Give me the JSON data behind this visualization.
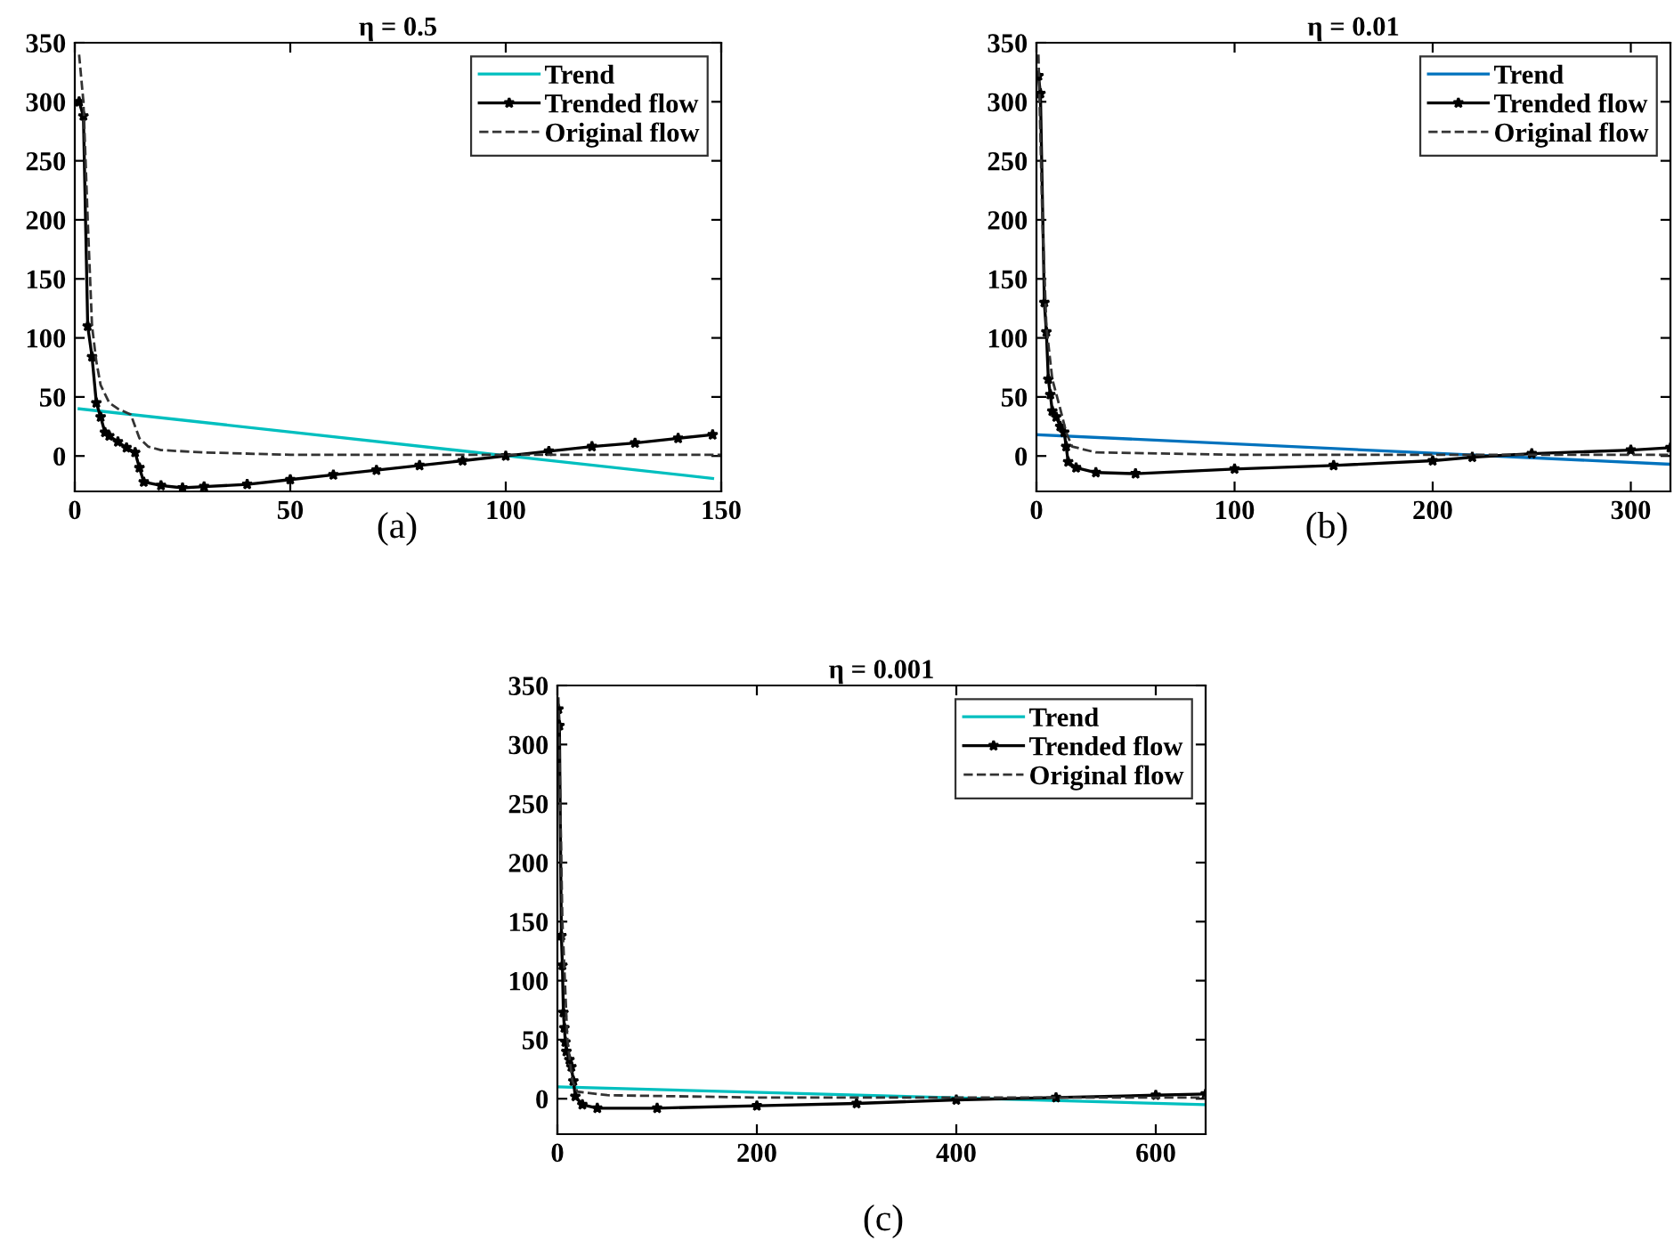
{
  "chart_data": [
    {
      "type": "line",
      "title": "η = 0.5",
      "xlim": [
        0,
        150
      ],
      "xticks": [
        0,
        50,
        100,
        150
      ],
      "ylim": [
        -30,
        350
      ],
      "yticks": [
        0,
        50,
        100,
        150,
        200,
        250,
        300,
        350
      ],
      "legend": "top right",
      "grid": false,
      "annotations": [
        "(a)"
      ],
      "series": [
        {
          "name": "Trend",
          "color": "#00bfbf",
          "line_style": "solid",
          "marker": "none",
          "x": [
            1,
            148
          ],
          "values": [
            40,
            -19
          ]
        },
        {
          "name": "Trended flow",
          "color": "#000000",
          "line_style": "solid",
          "marker": "star",
          "x": [
            1,
            2,
            3,
            4,
            5,
            6,
            7,
            8,
            10,
            12,
            14,
            15,
            16,
            20,
            25,
            30,
            40,
            50,
            60,
            70,
            80,
            90,
            100,
            110,
            120,
            130,
            140,
            148
          ],
          "values": [
            300,
            288,
            110,
            84,
            45,
            33,
            20,
            17,
            12,
            7,
            3,
            -10,
            -22,
            -25,
            -27,
            -26,
            -24,
            -20,
            -16,
            -12,
            -8,
            -4,
            0,
            4,
            8,
            11,
            15,
            18
          ]
        },
        {
          "name": "Original flow",
          "color": "#333333",
          "line_style": "dashed",
          "marker": "none",
          "x": [
            1,
            2,
            3,
            4,
            5,
            6,
            8,
            10,
            13,
            15,
            17,
            20,
            30,
            50,
            100,
            150
          ],
          "values": [
            340,
            300,
            200,
            110,
            80,
            60,
            45,
            40,
            35,
            15,
            8,
            5,
            3,
            1,
            1,
            1
          ]
        }
      ]
    },
    {
      "type": "line",
      "title": "η = 0.01",
      "xlim": [
        0,
        320
      ],
      "xticks": [
        0,
        100,
        200,
        300
      ],
      "ylim": [
        -30,
        350
      ],
      "yticks": [
        0,
        50,
        100,
        150,
        200,
        250,
        300,
        350
      ],
      "legend": "top right",
      "grid": false,
      "annotations": [
        "(b)"
      ],
      "series": [
        {
          "name": "Trend",
          "color": "#0072bd",
          "line_style": "solid",
          "marker": "none",
          "x": [
            1,
            320
          ],
          "values": [
            18,
            -7
          ]
        },
        {
          "name": "Trended flow",
          "color": "#000000",
          "line_style": "solid",
          "marker": "star",
          "x": [
            1,
            2,
            4,
            5,
            6,
            7,
            8,
            10,
            12,
            14,
            15,
            16,
            20,
            30,
            50,
            100,
            150,
            200,
            220,
            250,
            300,
            320
          ],
          "values": [
            322,
            307,
            130,
            105,
            65,
            52,
            38,
            33,
            25,
            20,
            8,
            -5,
            -10,
            -14,
            -15,
            -11,
            -8,
            -4,
            -1,
            2,
            5,
            7
          ]
        },
        {
          "name": "Original flow",
          "color": "#333333",
          "line_style": "dashed",
          "marker": "none",
          "x": [
            1,
            3,
            5,
            8,
            12,
            15,
            18,
            30,
            100,
            320
          ],
          "values": [
            340,
            200,
            110,
            65,
            40,
            20,
            8,
            3,
            1,
            1
          ]
        }
      ]
    },
    {
      "type": "line",
      "title": "η = 0.001",
      "xlim": [
        0,
        650
      ],
      "xticks": [
        0,
        200,
        400,
        600
      ],
      "ylim": [
        -30,
        350
      ],
      "yticks": [
        0,
        50,
        100,
        150,
        200,
        250,
        300,
        350
      ],
      "legend": "top right",
      "grid": false,
      "annotations": [
        "(c)"
      ],
      "series": [
        {
          "name": "Trend",
          "color": "#00bfbf",
          "line_style": "solid",
          "marker": "none",
          "x": [
            1,
            650
          ],
          "values": [
            10,
            -5
          ]
        },
        {
          "name": "Trended flow",
          "color": "#000000",
          "line_style": "solid",
          "marker": "star",
          "x": [
            1,
            2,
            4,
            5,
            6,
            7,
            8,
            9,
            12,
            14,
            16,
            18,
            25,
            40,
            100,
            200,
            300,
            400,
            500,
            600,
            650
          ],
          "values": [
            330,
            316,
            138,
            113,
            73,
            60,
            48,
            40,
            33,
            27,
            15,
            2,
            -5,
            -8,
            -8,
            -6,
            -4,
            -1,
            1,
            3,
            4
          ]
        },
        {
          "name": "Original flow",
          "color": "#333333",
          "line_style": "dashed",
          "marker": "none",
          "x": [
            1,
            5,
            10,
            15,
            20,
            50,
            200,
            650
          ],
          "values": [
            340,
            150,
            50,
            15,
            6,
            3,
            1,
            1
          ]
        }
      ]
    }
  ]
}
